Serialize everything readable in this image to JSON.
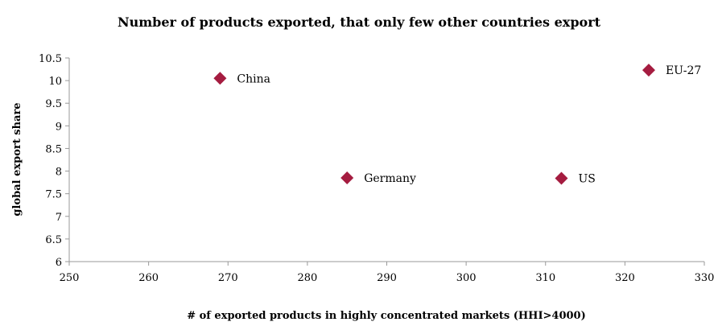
{
  "chart_data": {
    "type": "scatter",
    "title": "Number of products exported, that only few other countries export",
    "xlabel": "# of exported products in highly concentrated markets (HHI>4000)",
    "ylabel": "global export share",
    "xlim": [
      250,
      330
    ],
    "ylim": [
      6,
      10.5
    ],
    "xticks": [
      "250",
      "260",
      "270",
      "280",
      "290",
      "300",
      "310",
      "320",
      "330"
    ],
    "yticks": [
      "6",
      "6.5",
      "7",
      "7.5",
      "8",
      "8.5",
      "9",
      "9.5",
      "10",
      "10.5"
    ],
    "grid": false,
    "marker": "diamond",
    "color": "#A51C40",
    "points": [
      {
        "label": "China",
        "x": 269,
        "y": 10.05
      },
      {
        "label": "Germany",
        "x": 285,
        "y": 7.85
      },
      {
        "label": "US",
        "x": 312,
        "y": 7.84
      },
      {
        "label": "EU-27",
        "x": 323,
        "y": 10.23
      }
    ]
  }
}
